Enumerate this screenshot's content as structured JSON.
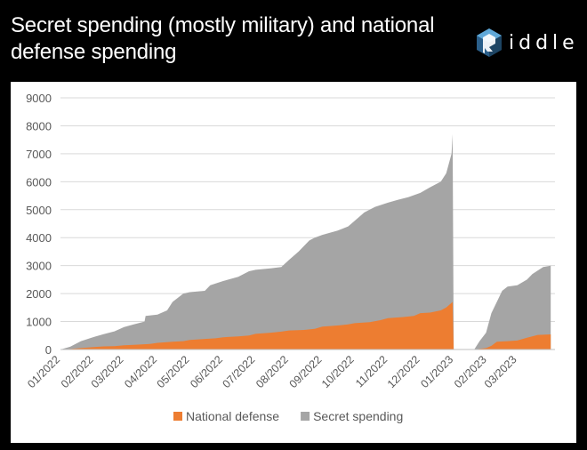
{
  "header": {
    "title": "Secret spending (mostly military) and national defense spending",
    "logo": {
      "icon": "riddle-cube-logo",
      "text": "iddle"
    }
  },
  "chart_data": {
    "type": "area",
    "stacked": true,
    "title": "Secret spending (mostly military) and national defense spending",
    "xlabel": "",
    "ylabel": "",
    "ylim": [
      0,
      9000
    ],
    "yticks": [
      0,
      1000,
      2000,
      3000,
      4000,
      5000,
      6000,
      7000,
      8000,
      9000
    ],
    "xlim": [
      "2022-01-01",
      "2023-04-05"
    ],
    "xtick_labels": [
      "01/2022",
      "02/2022",
      "03/2022",
      "04/2022",
      "05/2022",
      "06/2022",
      "07/2022",
      "08/2022",
      "09/2022",
      "10/2022",
      "11/2022",
      "12/2022",
      "01/2023",
      "02/2023",
      "03/2023"
    ],
    "xtick_dates": [
      "2022-01-01",
      "2022-02-01",
      "2022-03-01",
      "2022-04-01",
      "2022-05-01",
      "2022-06-01",
      "2022-07-01",
      "2022-08-01",
      "2022-09-01",
      "2022-10-01",
      "2022-11-01",
      "2022-12-01",
      "2023-01-01",
      "2023-02-01",
      "2023-03-01"
    ],
    "grid": true,
    "legend": "bottom",
    "series": [
      {
        "name": "National defense",
        "color": "#ed7d31",
        "points": [
          [
            "2022-01-01",
            0
          ],
          [
            "2022-01-10",
            20
          ],
          [
            "2022-01-20",
            50
          ],
          [
            "2022-02-01",
            90
          ],
          [
            "2022-02-10",
            110
          ],
          [
            "2022-02-20",
            120
          ],
          [
            "2022-03-01",
            150
          ],
          [
            "2022-03-10",
            170
          ],
          [
            "2022-03-25",
            200
          ],
          [
            "2022-04-01",
            240
          ],
          [
            "2022-04-15",
            280
          ],
          [
            "2022-04-25",
            300
          ],
          [
            "2022-05-01",
            340
          ],
          [
            "2022-05-15",
            380
          ],
          [
            "2022-05-25",
            400
          ],
          [
            "2022-06-01",
            440
          ],
          [
            "2022-06-15",
            470
          ],
          [
            "2022-06-25",
            500
          ],
          [
            "2022-07-01",
            560
          ],
          [
            "2022-07-15",
            600
          ],
          [
            "2022-07-25",
            640
          ],
          [
            "2022-08-01",
            680
          ],
          [
            "2022-08-15",
            700
          ],
          [
            "2022-08-25",
            740
          ],
          [
            "2022-09-01",
            820
          ],
          [
            "2022-09-15",
            860
          ],
          [
            "2022-09-25",
            900
          ],
          [
            "2022-10-01",
            940
          ],
          [
            "2022-10-15",
            980
          ],
          [
            "2022-10-25",
            1050
          ],
          [
            "2022-11-01",
            1120
          ],
          [
            "2022-11-15",
            1160
          ],
          [
            "2022-11-25",
            1200
          ],
          [
            "2022-12-01",
            1300
          ],
          [
            "2022-12-10",
            1320
          ],
          [
            "2022-12-20",
            1400
          ],
          [
            "2022-12-25",
            1500
          ],
          [
            "2022-12-31",
            1700
          ],
          [
            "2023-01-01",
            0
          ],
          [
            "2023-01-20",
            0
          ],
          [
            "2023-01-31",
            50
          ],
          [
            "2023-02-05",
            130
          ],
          [
            "2023-02-10",
            280
          ],
          [
            "2023-02-20",
            300
          ],
          [
            "2023-03-01",
            320
          ],
          [
            "2023-03-10",
            420
          ],
          [
            "2023-03-20",
            520
          ],
          [
            "2023-04-01",
            540
          ]
        ]
      },
      {
        "name": "Secret spending",
        "color": "#a5a5a5",
        "total_points": [
          [
            "2022-01-01",
            0
          ],
          [
            "2022-01-10",
            100
          ],
          [
            "2022-01-20",
            300
          ],
          [
            "2022-02-01",
            450
          ],
          [
            "2022-02-10",
            550
          ],
          [
            "2022-02-20",
            650
          ],
          [
            "2022-03-01",
            800
          ],
          [
            "2022-03-10",
            900
          ],
          [
            "2022-03-20",
            1000
          ],
          [
            "2022-03-21",
            1200
          ],
          [
            "2022-04-01",
            1250
          ],
          [
            "2022-04-10",
            1400
          ],
          [
            "2022-04-15",
            1700
          ],
          [
            "2022-04-25",
            2000
          ],
          [
            "2022-05-01",
            2050
          ],
          [
            "2022-05-15",
            2100
          ],
          [
            "2022-05-20",
            2300
          ],
          [
            "2022-06-01",
            2450
          ],
          [
            "2022-06-15",
            2600
          ],
          [
            "2022-06-25",
            2800
          ],
          [
            "2022-07-01",
            2850
          ],
          [
            "2022-07-15",
            2900
          ],
          [
            "2022-07-25",
            2950
          ],
          [
            "2022-08-01",
            3200
          ],
          [
            "2022-08-10",
            3500
          ],
          [
            "2022-08-20",
            3900
          ],
          [
            "2022-08-25",
            4000
          ],
          [
            "2022-09-01",
            4100
          ],
          [
            "2022-09-15",
            4250
          ],
          [
            "2022-09-25",
            4400
          ],
          [
            "2022-10-01",
            4600
          ],
          [
            "2022-10-10",
            4900
          ],
          [
            "2022-10-20",
            5100
          ],
          [
            "2022-11-01",
            5250
          ],
          [
            "2022-11-10",
            5350
          ],
          [
            "2022-11-20",
            5450
          ],
          [
            "2022-12-01",
            5600
          ],
          [
            "2022-12-10",
            5800
          ],
          [
            "2022-12-20",
            6000
          ],
          [
            "2022-12-25",
            6300
          ],
          [
            "2022-12-30",
            7000
          ],
          [
            "2022-12-31",
            7700
          ],
          [
            "2023-01-01",
            0
          ],
          [
            "2023-01-20",
            0
          ],
          [
            "2023-01-25",
            300
          ],
          [
            "2023-01-31",
            600
          ],
          [
            "2023-02-05",
            1300
          ],
          [
            "2023-02-10",
            1700
          ],
          [
            "2023-02-15",
            2100
          ],
          [
            "2023-02-20",
            2250
          ],
          [
            "2023-03-01",
            2300
          ],
          [
            "2023-03-10",
            2500
          ],
          [
            "2023-03-15",
            2700
          ],
          [
            "2023-03-25",
            2950
          ],
          [
            "2023-04-01",
            3000
          ]
        ]
      }
    ]
  }
}
